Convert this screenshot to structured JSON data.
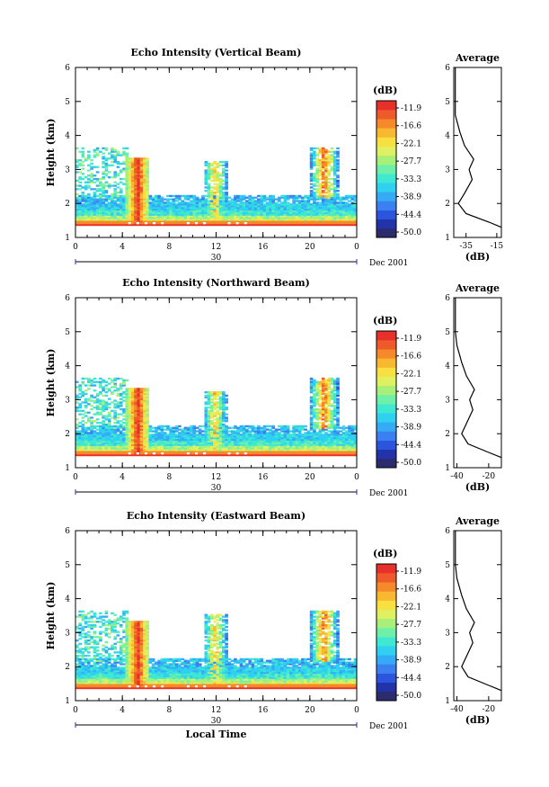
{
  "chart_data": [
    {
      "type": "heatmap",
      "title": "Echo Intensity (Vertical Beam)",
      "ylabel": "Height (km)",
      "xlabel": "",
      "x_ticks": [
        "0",
        "4",
        "8",
        "12",
        "16",
        "20",
        "0"
      ],
      "y_ticks": [
        "1",
        "2",
        "3",
        "4",
        "5",
        "6"
      ],
      "xlim": [
        0,
        24
      ],
      "ylim": [
        1,
        6
      ],
      "date_label": "30",
      "month_label": "Dec 2001",
      "colorbar": {
        "unit": "(dB)",
        "ticks": [
          "-11.9",
          "-16.6",
          "-22.1",
          "-27.7",
          "-33.3",
          "-38.9",
          "-44.4",
          "-50.0"
        ]
      },
      "profile": {
        "title": "Average",
        "xlabel": "(dB)",
        "x_ticks": [
          "-35",
          "-15"
        ],
        "xlim": [
          -43,
          -12
        ],
        "y_ticks": [
          "1",
          "2",
          "3",
          "4",
          "5",
          "6"
        ],
        "points": [
          [
            -12,
            1.3
          ],
          [
            -20,
            1.45
          ],
          [
            -35,
            1.7
          ],
          [
            -40,
            2.0
          ],
          [
            -36,
            2.3
          ],
          [
            -31,
            2.7
          ],
          [
            -33,
            3.0
          ],
          [
            -30,
            3.3
          ],
          [
            -36,
            3.7
          ],
          [
            -39,
            4.1
          ],
          [
            -42,
            4.6
          ],
          [
            -42,
            5.0
          ],
          [
            -42,
            5.5
          ],
          [
            -42,
            6.0
          ]
        ]
      }
    },
    {
      "type": "heatmap",
      "title": "Echo Intensity (Northward Beam)",
      "ylabel": "Height (km)",
      "xlabel": "",
      "x_ticks": [
        "0",
        "4",
        "8",
        "12",
        "16",
        "20",
        "0"
      ],
      "y_ticks": [
        "1",
        "2",
        "3",
        "4",
        "5",
        "6"
      ],
      "xlim": [
        0,
        24
      ],
      "ylim": [
        1,
        6
      ],
      "date_label": "30",
      "month_label": "Dec 2001",
      "colorbar": {
        "unit": "(dB)",
        "ticks": [
          "-11.9",
          "-16.6",
          "-22.1",
          "-27.7",
          "-33.3",
          "-38.9",
          "-44.4",
          "-50.0"
        ]
      },
      "profile": {
        "title": "Average",
        "xlabel": "(dB)",
        "x_ticks": [
          "-40",
          "-20"
        ],
        "xlim": [
          -42,
          -12
        ],
        "y_ticks": [
          "1",
          "2",
          "3",
          "4",
          "5",
          "6"
        ],
        "points": [
          [
            -12,
            1.3
          ],
          [
            -20,
            1.45
          ],
          [
            -33,
            1.7
          ],
          [
            -37,
            2.0
          ],
          [
            -34,
            2.3
          ],
          [
            -30,
            2.7
          ],
          [
            -32,
            3.0
          ],
          [
            -29,
            3.3
          ],
          [
            -34,
            3.7
          ],
          [
            -37,
            4.1
          ],
          [
            -40,
            4.6
          ],
          [
            -41,
            5.0
          ],
          [
            -41,
            5.5
          ],
          [
            -41,
            6.0
          ]
        ]
      }
    },
    {
      "type": "heatmap",
      "title": "Echo Intensity (Eastward Beam)",
      "ylabel": "Height (km)",
      "xlabel": "Local Time",
      "x_ticks": [
        "0",
        "4",
        "8",
        "12",
        "16",
        "20",
        "0"
      ],
      "y_ticks": [
        "1",
        "2",
        "3",
        "4",
        "5",
        "6"
      ],
      "xlim": [
        0,
        24
      ],
      "ylim": [
        1,
        6
      ],
      "date_label": "30",
      "month_label": "Dec 2001",
      "colorbar": {
        "unit": "(dB)",
        "ticks": [
          "-11.9",
          "-16.6",
          "-22.1",
          "-27.7",
          "-33.3",
          "-38.9",
          "-44.4",
          "-50.0"
        ]
      },
      "profile": {
        "title": "Average",
        "xlabel": "(dB)",
        "x_ticks": [
          "-40",
          "-20"
        ],
        "xlim": [
          -42,
          -12
        ],
        "y_ticks": [
          "1",
          "2",
          "3",
          "4",
          "5",
          "6"
        ],
        "points": [
          [
            -12,
            1.3
          ],
          [
            -20,
            1.45
          ],
          [
            -33,
            1.7
          ],
          [
            -37,
            2.0
          ],
          [
            -34,
            2.3
          ],
          [
            -30,
            2.7
          ],
          [
            -32,
            3.0
          ],
          [
            -29,
            3.3
          ],
          [
            -34,
            3.7
          ],
          [
            -37,
            4.1
          ],
          [
            -40,
            4.6
          ],
          [
            -41,
            5.0
          ],
          [
            -41,
            5.5
          ],
          [
            -41,
            6.0
          ]
        ]
      }
    }
  ],
  "colors": {
    "scale": [
      "#2b2b6e",
      "#2233aa",
      "#2b55dd",
      "#3b80f0",
      "#35aaf5",
      "#2fd0f0",
      "#3fe8d0",
      "#6ff0a8",
      "#a8f07a",
      "#dff060",
      "#f7e040",
      "#f8b830",
      "#f58a2a",
      "#ef5a2a",
      "#e8302a"
    ]
  }
}
